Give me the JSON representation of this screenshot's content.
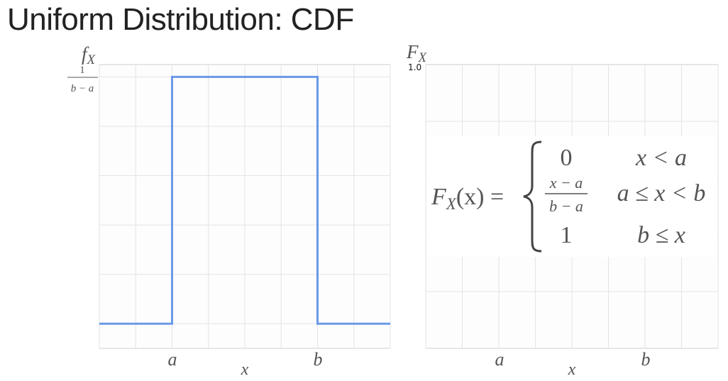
{
  "title": "Uniform Distribution: CDF",
  "chart_data": [
    {
      "type": "line",
      "name": "pdf",
      "ylabel_main": "f",
      "ylabel_sub": "X",
      "xlabel": "x",
      "x_ticks": [
        "a",
        "b"
      ],
      "y_tick_num": "1",
      "y_tick_den": "b − a",
      "x_pos": [
        0,
        1,
        2,
        3,
        4,
        5,
        6,
        7,
        8
      ],
      "x": [
        0,
        2,
        2,
        6,
        6,
        8
      ],
      "y": [
        0,
        0,
        1,
        1,
        0,
        0
      ],
      "xlim": [
        0,
        8
      ],
      "ylim": [
        -0.1,
        1.05
      ],
      "grid": true,
      "line_color": "#6a9ae6"
    },
    {
      "type": "line",
      "name": "cdf",
      "ylabel_main": "F",
      "ylabel_sub": "X",
      "xlabel": "x",
      "x_ticks": [
        "a",
        "b"
      ],
      "y_tick_top": "1.0",
      "xlim": [
        0,
        8
      ],
      "ylim": [
        0,
        1
      ],
      "grid": true,
      "formula": {
        "lhs_main": "F",
        "lhs_sub": "X",
        "lhs_rest": "(x) =",
        "cases": [
          {
            "value": "0",
            "condition": "x < a"
          },
          {
            "value_num": "x − a",
            "value_den": "b − a",
            "condition": "a ≤ x < b"
          },
          {
            "value": "1",
            "condition": "b ≤ x"
          }
        ]
      }
    }
  ],
  "colors": {
    "curve": "#6a9ae6",
    "grid": "#e4e4e4",
    "frame": "#cfcfcf",
    "text": "#555555"
  }
}
